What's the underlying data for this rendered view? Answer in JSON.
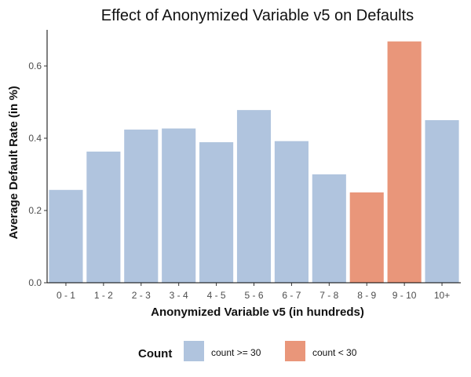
{
  "chart_data": {
    "type": "bar",
    "title": "Effect of Anonymized Variable v5 on Defaults",
    "xlabel": "Anonymized Variable v5 (in hundreds)",
    "ylabel": "Average Default Rate (in %)",
    "categories": [
      "0 - 1",
      "1 - 2",
      "2 - 3",
      "3 - 4",
      "4 - 5",
      "5 - 6",
      "6 - 7",
      "7 - 8",
      "8 - 9",
      "9 - 10",
      "10+"
    ],
    "values": [
      0.257,
      0.363,
      0.424,
      0.427,
      0.389,
      0.478,
      0.392,
      0.3,
      0.25,
      0.668,
      0.45
    ],
    "groups": [
      "count >= 30",
      "count >= 30",
      "count >= 30",
      "count >= 30",
      "count >= 30",
      "count >= 30",
      "count >= 30",
      "count >= 30",
      "count < 30",
      "count < 30",
      "count >= 30"
    ],
    "ylim": [
      0,
      0.7
    ],
    "yticks": [
      0.0,
      0.2,
      0.4,
      0.6
    ],
    "ytick_labels": [
      "0.0",
      "0.2",
      "0.4",
      "0.6"
    ],
    "grid": false,
    "legend": {
      "title": "Count",
      "position": "bottom",
      "items": [
        {
          "label": "count >= 30",
          "color": "#b0c4de"
        },
        {
          "label": "count < 30",
          "color": "#e9967a"
        }
      ]
    }
  }
}
